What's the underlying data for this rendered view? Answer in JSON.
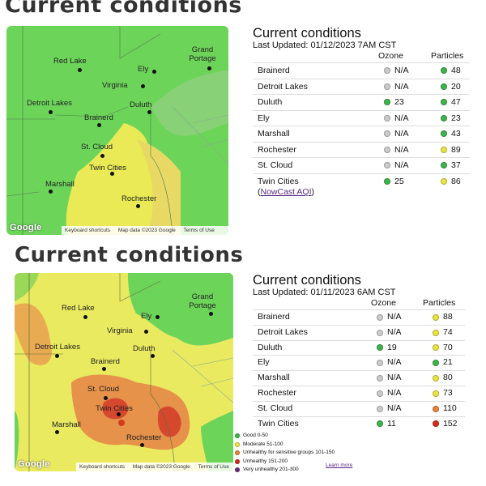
{
  "heading_top": "Current conditions",
  "heading_bottom": "Current conditions",
  "map_common": {
    "google": "Google",
    "keyboard": "Keyboard shortcuts",
    "terms": "Terms of Use"
  },
  "map1": {
    "mapdata": "Map data ©2023 Google",
    "cities": [
      "Red Lake",
      "Ely",
      "Grand Portage",
      "Virginia",
      "Detroit Lakes",
      "Duluth",
      "Brainerd",
      "St. Cloud",
      "Twin Cities",
      "Marshall",
      "Rochester"
    ]
  },
  "map2": {
    "mapdata": "Map data ©2023 Google",
    "cities": [
      "Red Lake",
      "Ely",
      "Grand Portage",
      "Virginia",
      "Detroit Lakes",
      "Duluth",
      "Brainerd",
      "St. Cloud",
      "Twin Cities",
      "Marshall",
      "Rochester"
    ]
  },
  "colors": {
    "good": "#3db54a",
    "moderate": "#ece43e",
    "sensitive": "#e9823a",
    "unhealthy": "#d52b1e",
    "very_unhealthy": "#6e2a7f",
    "na": "#cccccc"
  },
  "table1": {
    "title": "Current conditions",
    "updated": "Last Updated: 01/12/2023 7AM CST",
    "col_ozone": "Ozone",
    "col_particles": "Particles",
    "rows": [
      {
        "city": "Brainerd",
        "ozone": "N/A",
        "ozone_level": "na",
        "particles": "48",
        "particles_level": "good"
      },
      {
        "city": "Detroit Lakes",
        "ozone": "N/A",
        "ozone_level": "na",
        "particles": "20",
        "particles_level": "good"
      },
      {
        "city": "Duluth",
        "ozone": "23",
        "ozone_level": "good",
        "particles": "47",
        "particles_level": "good"
      },
      {
        "city": "Ely",
        "ozone": "N/A",
        "ozone_level": "na",
        "particles": "23",
        "particles_level": "good"
      },
      {
        "city": "Marshall",
        "ozone": "N/A",
        "ozone_level": "na",
        "particles": "43",
        "particles_level": "good"
      },
      {
        "city": "Rochester",
        "ozone": "N/A",
        "ozone_level": "na",
        "particles": "89",
        "particles_level": "moderate"
      },
      {
        "city": "St. Cloud",
        "ozone": "N/A",
        "ozone_level": "na",
        "particles": "37",
        "particles_level": "good"
      },
      {
        "city": "Twin Cities",
        "ozone": "25",
        "ozone_level": "good",
        "particles": "86",
        "particles_level": "moderate"
      }
    ],
    "link_open": "(",
    "link": "NowCast AQI",
    "link_close": ")"
  },
  "table2": {
    "title": "Current conditions",
    "updated": "Last Updated: 01/11/2023 6AM CST",
    "col_ozone": "Ozone",
    "col_particles": "Particles",
    "rows": [
      {
        "city": "Brainerd",
        "ozone": "N/A",
        "ozone_level": "na",
        "particles": "88",
        "particles_level": "moderate"
      },
      {
        "city": "Detroit Lakes",
        "ozone": "N/A",
        "ozone_level": "na",
        "particles": "74",
        "particles_level": "moderate"
      },
      {
        "city": "Duluth",
        "ozone": "19",
        "ozone_level": "good",
        "particles": "70",
        "particles_level": "moderate"
      },
      {
        "city": "Ely",
        "ozone": "N/A",
        "ozone_level": "na",
        "particles": "21",
        "particles_level": "good"
      },
      {
        "city": "Marshall",
        "ozone": "N/A",
        "ozone_level": "na",
        "particles": "80",
        "particles_level": "moderate"
      },
      {
        "city": "Rochester",
        "ozone": "N/A",
        "ozone_level": "na",
        "particles": "73",
        "particles_level": "moderate"
      },
      {
        "city": "St. Cloud",
        "ozone": "N/A",
        "ozone_level": "na",
        "particles": "110",
        "particles_level": "sensitive"
      },
      {
        "city": "Twin Cities",
        "ozone": "11",
        "ozone_level": "good",
        "particles": "152",
        "particles_level": "unhealthy"
      }
    ]
  },
  "legend": {
    "items": [
      {
        "label": "Good 0-50",
        "level": "good"
      },
      {
        "label": "Moderate 51-100",
        "level": "moderate"
      },
      {
        "label": "Unhealthy for sensitive groups 101-150",
        "level": "sensitive"
      },
      {
        "label": "Unhealthy 151-200",
        "level": "unhealthy"
      },
      {
        "label": "Very unhealthy 201-300",
        "level": "very_unhealthy"
      }
    ],
    "learn_more": "Learn more"
  }
}
